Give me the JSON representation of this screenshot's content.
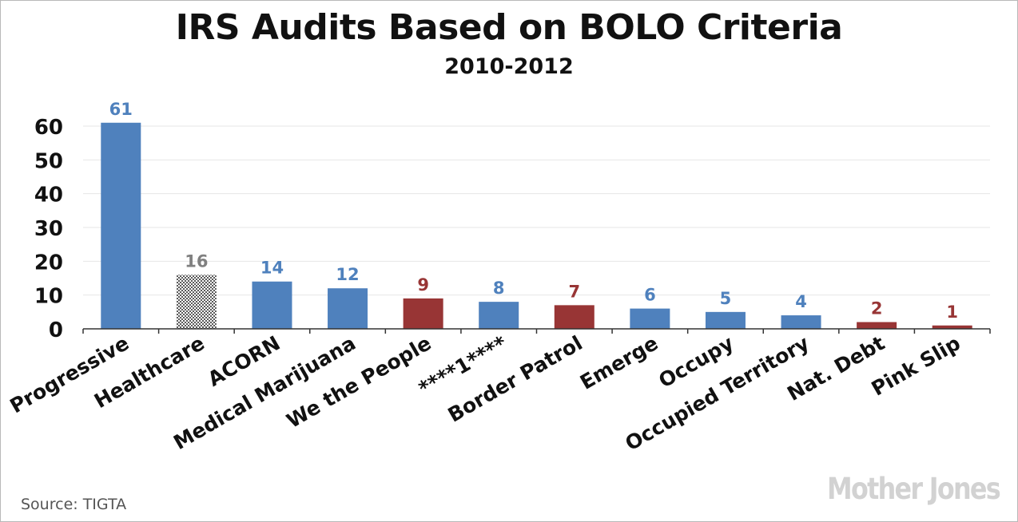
{
  "chart_data": {
    "type": "bar",
    "title": "IRS Audits Based on BOLO Criteria",
    "subtitle": "2010-2012",
    "categories": [
      "Progressive",
      "Healthcare",
      "ACORN",
      "Medical Marijuana",
      "We the People",
      "****1****",
      "Border Patrol",
      "Emerge",
      "Occupy",
      "Occupied Territory",
      "Nat. Debt",
      "Pink Slip"
    ],
    "values": [
      61,
      16,
      14,
      12,
      9,
      8,
      7,
      6,
      5,
      4,
      2,
      1
    ],
    "bar_colors": [
      "#4f81bd",
      "#a6a6a6",
      "#4f81bd",
      "#4f81bd",
      "#983535",
      "#4f81bd",
      "#983535",
      "#4f81bd",
      "#4f81bd",
      "#4f81bd",
      "#983535",
      "#983535"
    ],
    "label_colors": [
      "#4f81bd",
      "#808080",
      "#4f81bd",
      "#4f81bd",
      "#983535",
      "#4f81bd",
      "#983535",
      "#4f81bd",
      "#4f81bd",
      "#4f81bd",
      "#983535",
      "#983535"
    ],
    "patterned": [
      false,
      true,
      false,
      false,
      false,
      false,
      false,
      false,
      false,
      false,
      false,
      false
    ],
    "yticks": [
      0,
      10,
      20,
      30,
      40,
      50,
      60
    ],
    "ylim": [
      0,
      60
    ],
    "xlabel": "",
    "ylabel": "",
    "grid": true,
    "legend": "none"
  },
  "footer": {
    "source": "Source:  TIGTA",
    "logo": "Mother Jones"
  }
}
